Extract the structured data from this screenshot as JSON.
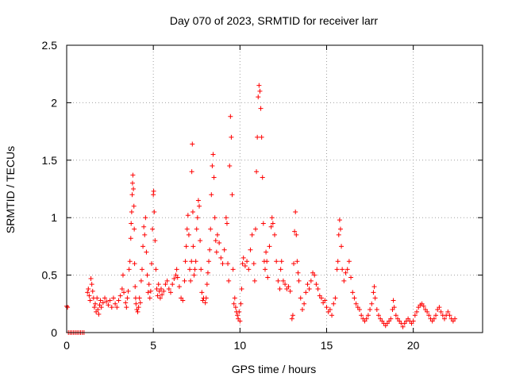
{
  "chart_data": {
    "type": "scatter",
    "title": "Day 070 of 2023, SRMTID for receiver larr",
    "xlabel": "GPS time / hours",
    "ylabel": "SRMTID / TECUs",
    "xlim": [
      0,
      24
    ],
    "ylim": [
      0,
      2.5
    ],
    "xticks": [
      0,
      5,
      10,
      15,
      20
    ],
    "xtick_labels": [
      "0",
      "5",
      "10",
      "15",
      "20"
    ],
    "yticks": [
      0,
      0.5,
      1,
      1.5,
      2,
      2.5
    ],
    "ytick_labels": [
      "0",
      "0.5",
      "1",
      "1.5",
      "2",
      "2.5"
    ],
    "grid": true,
    "marker": "+",
    "color": "#ff0000",
    "series": [
      {
        "name": "SRMTID",
        "points": [
          [
            0.0,
            0.23
          ],
          [
            0.05,
            0.22
          ],
          [
            0.1,
            0.0
          ],
          [
            0.2,
            0.0
          ],
          [
            0.3,
            0.0
          ],
          [
            0.4,
            0.0
          ],
          [
            0.5,
            0.0
          ],
          [
            0.6,
            0.0
          ],
          [
            0.7,
            0.0
          ],
          [
            0.8,
            0.0
          ],
          [
            0.9,
            0.0
          ],
          [
            1.0,
            0.0
          ],
          [
            1.2,
            0.35
          ],
          [
            1.25,
            0.38
          ],
          [
            1.3,
            0.32
          ],
          [
            1.35,
            0.28
          ],
          [
            1.4,
            0.47
          ],
          [
            1.45,
            0.42
          ],
          [
            1.5,
            0.36
          ],
          [
            1.55,
            0.3
          ],
          [
            1.6,
            0.22
          ],
          [
            1.65,
            0.25
          ],
          [
            1.7,
            0.18
          ],
          [
            1.75,
            0.3
          ],
          [
            1.8,
            0.2
          ],
          [
            1.85,
            0.16
          ],
          [
            1.9,
            0.24
          ],
          [
            1.95,
            0.28
          ],
          [
            2.0,
            0.22
          ],
          [
            2.1,
            0.26
          ],
          [
            2.2,
            0.3
          ],
          [
            2.3,
            0.27
          ],
          [
            2.4,
            0.24
          ],
          [
            2.5,
            0.28
          ],
          [
            2.6,
            0.22
          ],
          [
            2.7,
            0.3
          ],
          [
            2.8,
            0.25
          ],
          [
            2.9,
            0.22
          ],
          [
            3.0,
            0.28
          ],
          [
            3.1,
            0.32
          ],
          [
            3.2,
            0.38
          ],
          [
            3.25,
            0.5
          ],
          [
            3.3,
            0.35
          ],
          [
            3.4,
            0.26
          ],
          [
            3.45,
            0.22
          ],
          [
            3.5,
            0.3
          ],
          [
            3.55,
            0.36
          ],
          [
            3.6,
            0.55
          ],
          [
            3.65,
            0.62
          ],
          [
            3.7,
            0.82
          ],
          [
            3.72,
            0.95
          ],
          [
            3.75,
            1.05
          ],
          [
            3.78,
            1.2
          ],
          [
            3.8,
            1.3
          ],
          [
            3.82,
            1.37
          ],
          [
            3.85,
            1.25
          ],
          [
            3.88,
            1.1
          ],
          [
            3.9,
            0.9
          ],
          [
            3.92,
            0.6
          ],
          [
            3.95,
            0.4
          ],
          [
            3.98,
            0.3
          ],
          [
            4.0,
            0.25
          ],
          [
            4.05,
            0.2
          ],
          [
            4.1,
            0.18
          ],
          [
            4.15,
            0.22
          ],
          [
            4.2,
            0.3
          ],
          [
            4.25,
            0.26
          ],
          [
            4.3,
            0.45
          ],
          [
            4.35,
            0.55
          ],
          [
            4.4,
            0.75
          ],
          [
            4.45,
            0.92
          ],
          [
            4.5,
            0.85
          ],
          [
            4.55,
            1.0
          ],
          [
            4.6,
            0.7
          ],
          [
            4.65,
            0.5
          ],
          [
            4.7,
            0.35
          ],
          [
            4.75,
            0.42
          ],
          [
            4.8,
            0.3
          ],
          [
            4.85,
            0.36
          ],
          [
            4.9,
            0.6
          ],
          [
            4.95,
            0.9
          ],
          [
            5.0,
            1.2
          ],
          [
            5.02,
            1.23
          ],
          [
            5.05,
            1.05
          ],
          [
            5.1,
            0.8
          ],
          [
            5.15,
            0.55
          ],
          [
            5.2,
            0.38
          ],
          [
            5.25,
            0.32
          ],
          [
            5.3,
            0.42
          ],
          [
            5.35,
            0.36
          ],
          [
            5.4,
            0.3
          ],
          [
            5.45,
            0.38
          ],
          [
            5.5,
            0.33
          ],
          [
            5.6,
            0.36
          ],
          [
            5.7,
            0.42
          ],
          [
            5.8,
            0.45
          ],
          [
            5.9,
            0.38
          ],
          [
            6.0,
            0.35
          ],
          [
            6.1,
            0.42
          ],
          [
            6.2,
            0.47
          ],
          [
            6.3,
            0.5
          ],
          [
            6.35,
            0.55
          ],
          [
            6.4,
            0.48
          ],
          [
            6.5,
            0.4
          ],
          [
            6.6,
            0.3
          ],
          [
            6.7,
            0.28
          ],
          [
            6.8,
            0.45
          ],
          [
            6.85,
            0.62
          ],
          [
            6.9,
            0.75
          ],
          [
            6.95,
            0.9
          ],
          [
            7.0,
            1.02
          ],
          [
            7.05,
            0.85
          ],
          [
            7.1,
            0.55
          ],
          [
            7.15,
            0.45
          ],
          [
            7.2,
            0.62
          ],
          [
            7.22,
            1.4
          ],
          [
            7.25,
            1.64
          ],
          [
            7.28,
            1.05
          ],
          [
            7.3,
            0.75
          ],
          [
            7.35,
            0.5
          ],
          [
            7.4,
            0.55
          ],
          [
            7.45,
            0.62
          ],
          [
            7.5,
            0.9
          ],
          [
            7.55,
            1.0
          ],
          [
            7.6,
            1.15
          ],
          [
            7.65,
            1.1
          ],
          [
            7.7,
            0.8
          ],
          [
            7.75,
            0.55
          ],
          [
            7.8,
            0.35
          ],
          [
            7.85,
            0.28
          ],
          [
            7.9,
            0.3
          ],
          [
            8.0,
            0.26
          ],
          [
            8.05,
            0.3
          ],
          [
            8.1,
            0.42
          ],
          [
            8.15,
            0.52
          ],
          [
            8.2,
            0.62
          ],
          [
            8.25,
            0.72
          ],
          [
            8.3,
            0.9
          ],
          [
            8.35,
            1.2
          ],
          [
            8.4,
            1.45
          ],
          [
            8.45,
            1.55
          ],
          [
            8.5,
            1.35
          ],
          [
            8.55,
            1.0
          ],
          [
            8.6,
            0.8
          ],
          [
            8.65,
            0.7
          ],
          [
            8.7,
            0.85
          ],
          [
            8.8,
            0.78
          ],
          [
            8.9,
            0.65
          ],
          [
            9.0,
            0.6
          ],
          [
            9.1,
            0.72
          ],
          [
            9.2,
            1.0
          ],
          [
            9.25,
            0.95
          ],
          [
            9.3,
            0.6
          ],
          [
            9.35,
            0.45
          ],
          [
            9.4,
            1.45
          ],
          [
            9.45,
            1.88
          ],
          [
            9.5,
            1.7
          ],
          [
            9.55,
            1.2
          ],
          [
            9.6,
            0.55
          ],
          [
            9.65,
            0.25
          ],
          [
            9.7,
            0.3
          ],
          [
            9.75,
            0.22
          ],
          [
            9.8,
            0.18
          ],
          [
            9.85,
            0.15
          ],
          [
            9.9,
            0.12
          ],
          [
            9.95,
            0.18
          ],
          [
            10.0,
            0.1
          ],
          [
            10.05,
            0.25
          ],
          [
            10.1,
            0.38
          ],
          [
            10.15,
            0.6
          ],
          [
            10.2,
            0.65
          ],
          [
            10.3,
            0.58
          ],
          [
            10.4,
            0.62
          ],
          [
            10.5,
            0.55
          ],
          [
            10.6,
            0.72
          ],
          [
            10.7,
            0.85
          ],
          [
            10.8,
            0.6
          ],
          [
            10.85,
            0.45
          ],
          [
            10.9,
            0.9
          ],
          [
            10.95,
            1.4
          ],
          [
            11.0,
            1.7
          ],
          [
            11.05,
            2.05
          ],
          [
            11.1,
            2.15
          ],
          [
            11.15,
            2.1
          ],
          [
            11.2,
            1.95
          ],
          [
            11.25,
            1.7
          ],
          [
            11.3,
            1.35
          ],
          [
            11.35,
            0.95
          ],
          [
            11.4,
            0.62
          ],
          [
            11.45,
            0.55
          ],
          [
            11.5,
            0.7
          ],
          [
            11.55,
            0.62
          ],
          [
            11.6,
            0.48
          ],
          [
            11.7,
            0.75
          ],
          [
            11.8,
            0.92
          ],
          [
            11.85,
            1.0
          ],
          [
            11.9,
            0.95
          ],
          [
            12.0,
            0.85
          ],
          [
            12.1,
            0.62
          ],
          [
            12.2,
            0.45
          ],
          [
            12.3,
            0.38
          ],
          [
            12.35,
            0.55
          ],
          [
            12.4,
            0.62
          ],
          [
            12.5,
            0.45
          ],
          [
            12.6,
            0.42
          ],
          [
            12.7,
            0.38
          ],
          [
            12.8,
            0.4
          ],
          [
            12.9,
            0.36
          ],
          [
            13.0,
            0.12
          ],
          [
            13.05,
            0.15
          ],
          [
            13.1,
            0.6
          ],
          [
            13.15,
            0.88
          ],
          [
            13.2,
            1.05
          ],
          [
            13.25,
            0.85
          ],
          [
            13.3,
            0.62
          ],
          [
            13.35,
            0.52
          ],
          [
            13.4,
            0.45
          ],
          [
            13.5,
            0.3
          ],
          [
            13.6,
            0.2
          ],
          [
            13.7,
            0.25
          ],
          [
            13.8,
            0.35
          ],
          [
            13.9,
            0.42
          ],
          [
            14.0,
            0.38
          ],
          [
            14.1,
            0.45
          ],
          [
            14.2,
            0.52
          ],
          [
            14.3,
            0.5
          ],
          [
            14.4,
            0.42
          ],
          [
            14.5,
            0.38
          ],
          [
            14.6,
            0.32
          ],
          [
            14.7,
            0.3
          ],
          [
            14.8,
            0.26
          ],
          [
            14.9,
            0.28
          ],
          [
            15.0,
            0.22
          ],
          [
            15.1,
            0.18
          ],
          [
            15.2,
            0.2
          ],
          [
            15.3,
            0.15
          ],
          [
            15.4,
            0.25
          ],
          [
            15.5,
            0.3
          ],
          [
            15.6,
            0.55
          ],
          [
            15.65,
            0.62
          ],
          [
            15.7,
            0.85
          ],
          [
            15.75,
            0.98
          ],
          [
            15.8,
            0.9
          ],
          [
            15.85,
            0.75
          ],
          [
            15.9,
            0.55
          ],
          [
            16.0,
            0.45
          ],
          [
            16.1,
            0.52
          ],
          [
            16.2,
            0.55
          ],
          [
            16.3,
            0.62
          ],
          [
            16.4,
            0.48
          ],
          [
            16.5,
            0.35
          ],
          [
            16.6,
            0.3
          ],
          [
            16.7,
            0.25
          ],
          [
            16.8,
            0.22
          ],
          [
            16.9,
            0.2
          ],
          [
            17.0,
            0.15
          ],
          [
            17.1,
            0.12
          ],
          [
            17.2,
            0.1
          ],
          [
            17.3,
            0.12
          ],
          [
            17.4,
            0.15
          ],
          [
            17.5,
            0.2
          ],
          [
            17.6,
            0.25
          ],
          [
            17.7,
            0.35
          ],
          [
            17.75,
            0.4
          ],
          [
            17.8,
            0.3
          ],
          [
            17.9,
            0.2
          ],
          [
            18.0,
            0.15
          ],
          [
            18.1,
            0.12
          ],
          [
            18.2,
            0.1
          ],
          [
            18.3,
            0.08
          ],
          [
            18.4,
            0.06
          ],
          [
            18.5,
            0.08
          ],
          [
            18.6,
            0.1
          ],
          [
            18.7,
            0.12
          ],
          [
            18.8,
            0.2
          ],
          [
            18.85,
            0.28
          ],
          [
            18.9,
            0.22
          ],
          [
            19.0,
            0.15
          ],
          [
            19.1,
            0.12
          ],
          [
            19.2,
            0.1
          ],
          [
            19.3,
            0.08
          ],
          [
            19.4,
            0.05
          ],
          [
            19.5,
            0.08
          ],
          [
            19.6,
            0.1
          ],
          [
            19.7,
            0.12
          ],
          [
            19.8,
            0.1
          ],
          [
            19.9,
            0.08
          ],
          [
            20.0,
            0.1
          ],
          [
            20.1,
            0.15
          ],
          [
            20.2,
            0.18
          ],
          [
            20.3,
            0.22
          ],
          [
            20.4,
            0.24
          ],
          [
            20.5,
            0.25
          ],
          [
            20.6,
            0.23
          ],
          [
            20.7,
            0.2
          ],
          [
            20.8,
            0.18
          ],
          [
            20.9,
            0.15
          ],
          [
            21.0,
            0.12
          ],
          [
            21.1,
            0.1
          ],
          [
            21.2,
            0.12
          ],
          [
            21.3,
            0.15
          ],
          [
            21.4,
            0.2
          ],
          [
            21.5,
            0.22
          ],
          [
            21.6,
            0.18
          ],
          [
            21.7,
            0.15
          ],
          [
            21.8,
            0.12
          ],
          [
            21.9,
            0.15
          ],
          [
            22.0,
            0.18
          ],
          [
            22.1,
            0.15
          ],
          [
            22.2,
            0.12
          ],
          [
            22.3,
            0.1
          ],
          [
            22.4,
            0.12
          ]
        ]
      }
    ]
  }
}
